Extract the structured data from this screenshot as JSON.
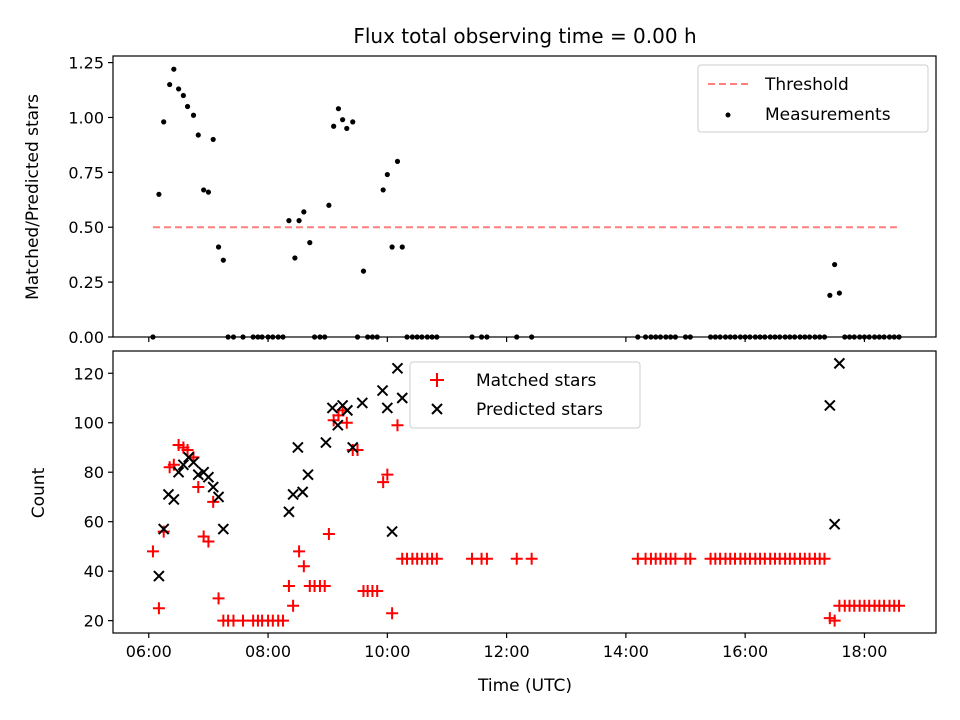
{
  "title": "Flux total observing time = 0.00 h",
  "colors": {
    "threshold": "#ff7f7f",
    "measurement": "#000000",
    "matched": "#ff0000",
    "predicted": "#000000"
  },
  "chart_data": [
    {
      "type": "scatter",
      "title": "Flux total observing time = 0.00 h",
      "xlabel": "",
      "ylabel": "Matched/Predicted stars",
      "xlim": [
        5.4,
        19.2
      ],
      "ylim": [
        0,
        1.28
      ],
      "yticks": [
        "0.00",
        "0.25",
        "0.50",
        "0.75",
        "1.00",
        "1.25"
      ],
      "grid": false,
      "legend_position": "top-right",
      "legend": [
        "Threshold",
        "Measurements"
      ],
      "threshold": {
        "name": "Threshold",
        "y": 0.5,
        "x": [
          6.07,
          18.58
        ]
      },
      "series": [
        {
          "name": "Measurements",
          "marker": "dot",
          "points": [
            [
              6.07,
              0.0
            ],
            [
              6.17,
              0.65
            ],
            [
              6.25,
              0.98
            ],
            [
              6.35,
              1.15
            ],
            [
              6.42,
              1.22
            ],
            [
              6.5,
              1.13
            ],
            [
              6.58,
              1.1
            ],
            [
              6.65,
              1.05
            ],
            [
              6.75,
              1.01
            ],
            [
              6.83,
              0.92
            ],
            [
              6.92,
              0.67
            ],
            [
              7.0,
              0.66
            ],
            [
              7.08,
              0.9
            ],
            [
              7.17,
              0.41
            ],
            [
              7.25,
              0.35
            ],
            [
              7.33,
              0.0
            ],
            [
              7.42,
              0.0
            ],
            [
              7.58,
              0.0
            ],
            [
              7.75,
              0.0
            ],
            [
              7.83,
              0.0
            ],
            [
              7.9,
              0.0
            ],
            [
              8.0,
              0.0
            ],
            [
              8.08,
              0.0
            ],
            [
              8.17,
              0.0
            ],
            [
              8.25,
              0.0
            ],
            [
              8.35,
              0.53
            ],
            [
              8.45,
              0.36
            ],
            [
              8.52,
              0.53
            ],
            [
              8.6,
              0.57
            ],
            [
              8.7,
              0.43
            ],
            [
              8.78,
              0.0
            ],
            [
              8.87,
              0.0
            ],
            [
              8.95,
              0.0
            ],
            [
              9.02,
              0.6
            ],
            [
              9.1,
              0.96
            ],
            [
              9.18,
              1.04
            ],
            [
              9.25,
              0.99
            ],
            [
              9.32,
              0.95
            ],
            [
              9.42,
              0.98
            ],
            [
              9.5,
              0.0
            ],
            [
              9.6,
              0.3
            ],
            [
              9.67,
              0.0
            ],
            [
              9.75,
              0.0
            ],
            [
              9.83,
              0.0
            ],
            [
              9.93,
              0.67
            ],
            [
              10.0,
              0.74
            ],
            [
              10.08,
              0.41
            ],
            [
              10.17,
              0.8
            ],
            [
              10.25,
              0.41
            ],
            [
              10.33,
              0.0
            ],
            [
              10.42,
              0.0
            ],
            [
              10.5,
              0.0
            ],
            [
              10.58,
              0.0
            ],
            [
              10.67,
              0.0
            ],
            [
              10.75,
              0.0
            ],
            [
              10.83,
              0.0
            ],
            [
              11.42,
              0.0
            ],
            [
              11.58,
              0.0
            ],
            [
              11.67,
              0.0
            ],
            [
              12.17,
              0.0
            ],
            [
              12.42,
              0.0
            ],
            [
              14.2,
              0.0
            ],
            [
              14.33,
              0.0
            ],
            [
              14.42,
              0.0
            ],
            [
              14.5,
              0.0
            ],
            [
              14.58,
              0.0
            ],
            [
              14.67,
              0.0
            ],
            [
              14.75,
              0.0
            ],
            [
              14.83,
              0.0
            ],
            [
              15.0,
              0.0
            ],
            [
              15.08,
              0.0
            ],
            [
              15.42,
              0.0
            ],
            [
              15.5,
              0.0
            ],
            [
              15.58,
              0.0
            ],
            [
              15.67,
              0.0
            ],
            [
              15.75,
              0.0
            ],
            [
              15.83,
              0.0
            ],
            [
              15.92,
              0.0
            ],
            [
              16.0,
              0.0
            ],
            [
              16.08,
              0.0
            ],
            [
              16.17,
              0.0
            ],
            [
              16.25,
              0.0
            ],
            [
              16.33,
              0.0
            ],
            [
              16.42,
              0.0
            ],
            [
              16.5,
              0.0
            ],
            [
              16.58,
              0.0
            ],
            [
              16.67,
              0.0
            ],
            [
              16.75,
              0.0
            ],
            [
              16.83,
              0.0
            ],
            [
              16.92,
              0.0
            ],
            [
              17.0,
              0.0
            ],
            [
              17.08,
              0.0
            ],
            [
              17.17,
              0.0
            ],
            [
              17.25,
              0.0
            ],
            [
              17.33,
              0.0
            ],
            [
              17.42,
              0.19
            ],
            [
              17.5,
              0.33
            ],
            [
              17.58,
              0.2
            ],
            [
              17.67,
              0.0
            ],
            [
              17.75,
              0.0
            ],
            [
              17.83,
              0.0
            ],
            [
              17.92,
              0.0
            ],
            [
              18.0,
              0.0
            ],
            [
              18.08,
              0.0
            ],
            [
              18.17,
              0.0
            ],
            [
              18.25,
              0.0
            ],
            [
              18.33,
              0.0
            ],
            [
              18.42,
              0.0
            ],
            [
              18.5,
              0.0
            ],
            [
              18.58,
              0.0
            ]
          ]
        }
      ]
    },
    {
      "type": "scatter",
      "title": "",
      "xlabel": "Time (UTC)",
      "ylabel": "Count",
      "xlim": [
        5.4,
        19.2
      ],
      "ylim": [
        15,
        129
      ],
      "xticks": [
        6,
        8,
        10,
        12,
        14,
        16,
        18
      ],
      "xticklabels": [
        "06:00",
        "08:00",
        "10:00",
        "12:00",
        "14:00",
        "16:00",
        "18:00"
      ],
      "yticks": [
        "20",
        "40",
        "60",
        "80",
        "100",
        "120"
      ],
      "grid": false,
      "legend_position": "top-center",
      "legend": [
        "Matched stars",
        "Predicted stars"
      ],
      "series": [
        {
          "name": "Matched stars",
          "marker": "plus",
          "points": [
            [
              6.07,
              48
            ],
            [
              6.17,
              25
            ],
            [
              6.25,
              56
            ],
            [
              6.35,
              82
            ],
            [
              6.42,
              83
            ],
            [
              6.5,
              91
            ],
            [
              6.58,
              90
            ],
            [
              6.65,
              89
            ],
            [
              6.75,
              86
            ],
            [
              6.83,
              74
            ],
            [
              6.92,
              54
            ],
            [
              7.0,
              52
            ],
            [
              7.08,
              68
            ],
            [
              7.17,
              29
            ],
            [
              7.25,
              20
            ],
            [
              7.33,
              20
            ],
            [
              7.42,
              20
            ],
            [
              7.58,
              20
            ],
            [
              7.75,
              20
            ],
            [
              7.83,
              20
            ],
            [
              7.9,
              20
            ],
            [
              8.0,
              20
            ],
            [
              8.08,
              20
            ],
            [
              8.17,
              20
            ],
            [
              8.25,
              20
            ],
            [
              8.35,
              34
            ],
            [
              8.42,
              26
            ],
            [
              8.52,
              48
            ],
            [
              8.6,
              42
            ],
            [
              8.7,
              34
            ],
            [
              8.78,
              34
            ],
            [
              8.87,
              34
            ],
            [
              8.95,
              34
            ],
            [
              9.02,
              55
            ],
            [
              9.1,
              101
            ],
            [
              9.18,
              103
            ],
            [
              9.25,
              105
            ],
            [
              9.32,
              100
            ],
            [
              9.42,
              89
            ],
            [
              9.5,
              89
            ],
            [
              9.6,
              32
            ],
            [
              9.67,
              32
            ],
            [
              9.75,
              32
            ],
            [
              9.83,
              32
            ],
            [
              9.93,
              76
            ],
            [
              10.0,
              79
            ],
            [
              10.08,
              23
            ],
            [
              10.17,
              99
            ],
            [
              10.25,
              45
            ],
            [
              10.33,
              45
            ],
            [
              10.42,
              45
            ],
            [
              10.5,
              45
            ],
            [
              10.58,
              45
            ],
            [
              10.67,
              45
            ],
            [
              10.75,
              45
            ],
            [
              10.83,
              45
            ],
            [
              11.42,
              45
            ],
            [
              11.58,
              45
            ],
            [
              11.67,
              45
            ],
            [
              12.17,
              45
            ],
            [
              12.42,
              45
            ],
            [
              14.2,
              45
            ],
            [
              14.33,
              45
            ],
            [
              14.42,
              45
            ],
            [
              14.5,
              45
            ],
            [
              14.58,
              45
            ],
            [
              14.67,
              45
            ],
            [
              14.75,
              45
            ],
            [
              14.83,
              45
            ],
            [
              15.0,
              45
            ],
            [
              15.08,
              45
            ],
            [
              15.42,
              45
            ],
            [
              15.5,
              45
            ],
            [
              15.58,
              45
            ],
            [
              15.67,
              45
            ],
            [
              15.75,
              45
            ],
            [
              15.83,
              45
            ],
            [
              15.92,
              45
            ],
            [
              16.0,
              45
            ],
            [
              16.08,
              45
            ],
            [
              16.17,
              45
            ],
            [
              16.25,
              45
            ],
            [
              16.33,
              45
            ],
            [
              16.42,
              45
            ],
            [
              16.5,
              45
            ],
            [
              16.58,
              45
            ],
            [
              16.67,
              45
            ],
            [
              16.75,
              45
            ],
            [
              16.83,
              45
            ],
            [
              16.92,
              45
            ],
            [
              17.0,
              45
            ],
            [
              17.08,
              45
            ],
            [
              17.17,
              45
            ],
            [
              17.25,
              45
            ],
            [
              17.33,
              45
            ],
            [
              17.42,
              21
            ],
            [
              17.5,
              20
            ],
            [
              17.58,
              26
            ],
            [
              17.67,
              26
            ],
            [
              17.75,
              26
            ],
            [
              17.83,
              26
            ],
            [
              17.92,
              26
            ],
            [
              18.0,
              26
            ],
            [
              18.08,
              26
            ],
            [
              18.17,
              26
            ],
            [
              18.25,
              26
            ],
            [
              18.33,
              26
            ],
            [
              18.42,
              26
            ],
            [
              18.5,
              26
            ],
            [
              18.58,
              26
            ]
          ]
        },
        {
          "name": "Predicted stars",
          "marker": "x",
          "points": [
            [
              6.17,
              38
            ],
            [
              6.25,
              57
            ],
            [
              6.33,
              71
            ],
            [
              6.42,
              69
            ],
            [
              6.5,
              80
            ],
            [
              6.58,
              83
            ],
            [
              6.67,
              86
            ],
            [
              6.75,
              84
            ],
            [
              6.83,
              79
            ],
            [
              6.92,
              80
            ],
            [
              7.0,
              78
            ],
            [
              7.08,
              74
            ],
            [
              7.17,
              70
            ],
            [
              7.25,
              57
            ],
            [
              8.35,
              64
            ],
            [
              8.42,
              71
            ],
            [
              8.5,
              90
            ],
            [
              8.58,
              72
            ],
            [
              8.67,
              79
            ],
            [
              8.97,
              92
            ],
            [
              9.08,
              106
            ],
            [
              9.17,
              99
            ],
            [
              9.25,
              107
            ],
            [
              9.33,
              105
            ],
            [
              9.42,
              90
            ],
            [
              9.58,
              108
            ],
            [
              9.92,
              113
            ],
            [
              10.0,
              106
            ],
            [
              10.08,
              56
            ],
            [
              10.17,
              122
            ],
            [
              10.25,
              110
            ],
            [
              17.42,
              107
            ],
            [
              17.5,
              59
            ],
            [
              17.58,
              124
            ]
          ]
        }
      ]
    }
  ]
}
